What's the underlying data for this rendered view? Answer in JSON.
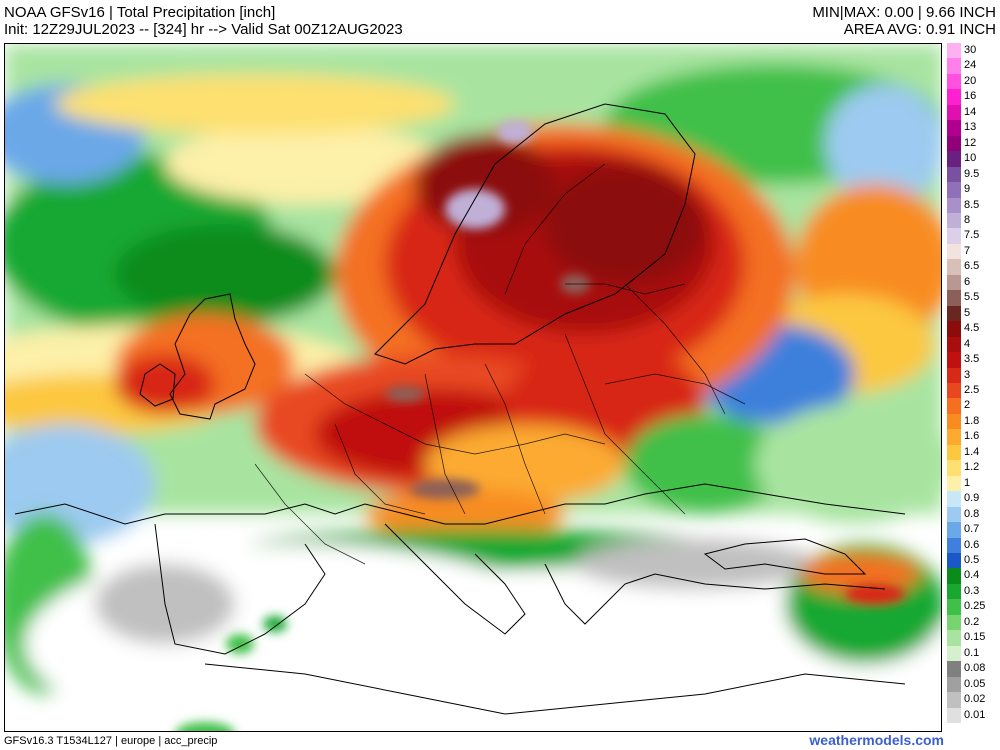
{
  "header": {
    "title_line": "NOAA GFSv16 | Total Precipitation [inch]",
    "init_line": "Init: 12Z29JUL2023 -- [324] hr --> Valid Sat 00Z12AUG2023",
    "minmax_line": "MIN|MAX: 0.00 | 9.66 INCH",
    "avg_line": "AREA AVG: 0.91 INCH"
  },
  "footer": {
    "model_info": "GFSv16.3 T1534L127 | europe | acc_precip",
    "brand": "weathermodels.com"
  },
  "legend": {
    "items": [
      {
        "label": "30",
        "color": "#ffb0f0"
      },
      {
        "label": "24",
        "color": "#ff80ea"
      },
      {
        "label": "20",
        "color": "#ff50e0"
      },
      {
        "label": "16",
        "color": "#ff20d0"
      },
      {
        "label": "14",
        "color": "#e010b0"
      },
      {
        "label": "13",
        "color": "#b00090"
      },
      {
        "label": "12",
        "color": "#900078"
      },
      {
        "label": "10",
        "color": "#6a2080"
      },
      {
        "label": "9.5",
        "color": "#7a50a0"
      },
      {
        "label": "9",
        "color": "#9070b8"
      },
      {
        "label": "8.5",
        "color": "#a890c8"
      },
      {
        "label": "8",
        "color": "#c0b0d8"
      },
      {
        "label": "7.5",
        "color": "#dcd0e8"
      },
      {
        "label": "7",
        "color": "#f2e2e0"
      },
      {
        "label": "6.5",
        "color": "#d8c0b8"
      },
      {
        "label": "6",
        "color": "#b89890"
      },
      {
        "label": "5.5",
        "color": "#8c6058"
      },
      {
        "label": "5",
        "color": "#6a2620"
      },
      {
        "label": "4.5",
        "color": "#8c0c0c"
      },
      {
        "label": "4",
        "color": "#a80e0e"
      },
      {
        "label": "3.5",
        "color": "#c01010"
      },
      {
        "label": "3",
        "color": "#d82818"
      },
      {
        "label": "2.5",
        "color": "#e84820"
      },
      {
        "label": "2",
        "color": "#f47020"
      },
      {
        "label": "1.8",
        "color": "#f88c20"
      },
      {
        "label": "1.6",
        "color": "#fcaa30"
      },
      {
        "label": "1.4",
        "color": "#fcc840"
      },
      {
        "label": "1.2",
        "color": "#fde070"
      },
      {
        "label": "1",
        "color": "#fdf0a8"
      },
      {
        "label": "0.9",
        "color": "#c8e8f8"
      },
      {
        "label": "0.8",
        "color": "#9ccaf0"
      },
      {
        "label": "0.7",
        "color": "#6aa8e8"
      },
      {
        "label": "0.6",
        "color": "#3e80dc"
      },
      {
        "label": "0.5",
        "color": "#1a58c8"
      },
      {
        "label": "0.4",
        "color": "#0a8c1c"
      },
      {
        "label": "0.3",
        "color": "#18a830"
      },
      {
        "label": "0.25",
        "color": "#40c048"
      },
      {
        "label": "0.2",
        "color": "#78d470"
      },
      {
        "label": "0.15",
        "color": "#a8e4a0"
      },
      {
        "label": "0.1",
        "color": "#d4f0cc"
      },
      {
        "label": "0.08",
        "color": "#808080"
      },
      {
        "label": "0.05",
        "color": "#a0a0a0"
      },
      {
        "label": "0.02",
        "color": "#c0c0c0"
      },
      {
        "label": "0.01",
        "color": "#e0e0e0"
      }
    ]
  }
}
